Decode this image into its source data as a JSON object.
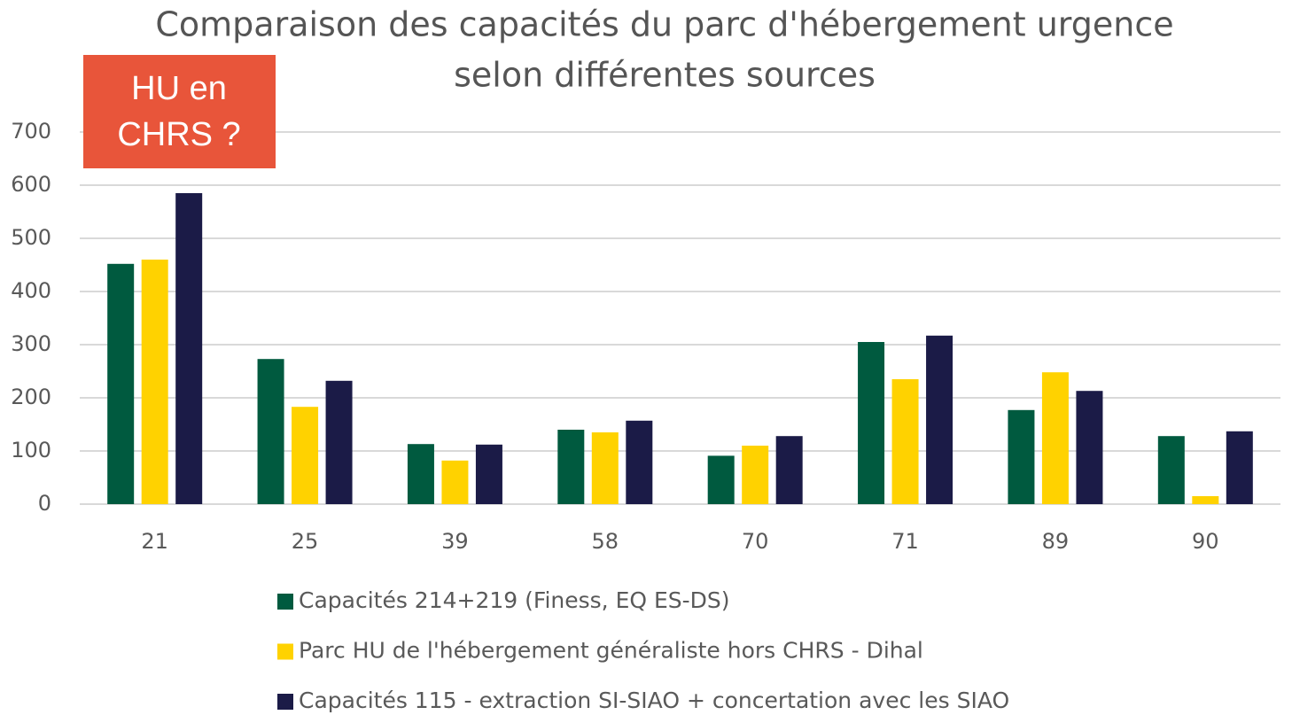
{
  "chart_data": {
    "type": "bar",
    "title": [
      "Comparaison des capacités du parc d'hébergement urgence",
      "selon différentes sources"
    ],
    "annotation": [
      "HU en",
      "CHRS ?"
    ],
    "categories": [
      "21",
      "25",
      "39",
      "58",
      "70",
      "71",
      "89",
      "90"
    ],
    "series": [
      {
        "name": "Capacités 214+219 (Finess, EQ ES-DS)",
        "color": "#005a3f",
        "values": [
          452,
          273,
          113,
          140,
          91,
          305,
          177,
          128
        ]
      },
      {
        "name": "Parc HU de l'hébergement généraliste hors CHRS -  Dihal",
        "color": "#ffd200",
        "values": [
          460,
          183,
          82,
          135,
          110,
          235,
          248,
          15
        ]
      },
      {
        "name": "Capacités 115 - extraction SI-SIAO + concertation avec les SIAO",
        "color": "#1b1b47",
        "values": [
          585,
          232,
          112,
          157,
          128,
          317,
          213,
          137
        ]
      }
    ],
    "ylim": [
      0,
      700
    ],
    "yticks": [
      0,
      100,
      200,
      300,
      400,
      500,
      600,
      700
    ],
    "grid": true,
    "legend": "bottom"
  }
}
